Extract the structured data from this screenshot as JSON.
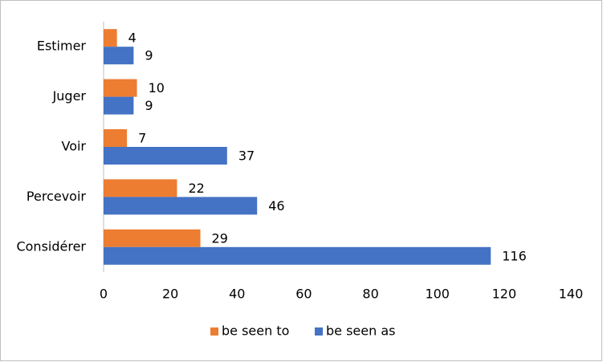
{
  "chart_data": {
    "type": "bar",
    "orientation": "horizontal",
    "categories": [
      "Estimer",
      "Juger",
      "Voir",
      "Percevoir",
      "Considérer"
    ],
    "series": [
      {
        "name": "be seen to",
        "color": "#ed7d31",
        "values": [
          4,
          10,
          7,
          22,
          29
        ]
      },
      {
        "name": "be seen as",
        "color": "#4472c4",
        "values": [
          9,
          9,
          37,
          46,
          116
        ]
      }
    ],
    "xlim": [
      0,
      140
    ],
    "xticks": [
      0,
      20,
      40,
      60,
      80,
      100,
      120,
      140
    ],
    "legend": "bottom"
  }
}
